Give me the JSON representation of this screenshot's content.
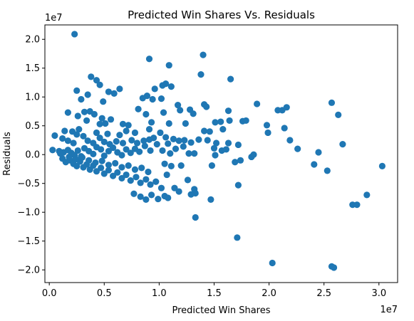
{
  "chart_data": {
    "type": "scatter",
    "title": "Predicted Win Shares Vs. Residuals",
    "xlabel": "Predicted Win Shares",
    "ylabel": "Residuals",
    "x_offset_label": "1e7",
    "y_offset_label": "1e7",
    "xlim": [
      -400000,
      31700000
    ],
    "ylim": [
      -22200000,
      22500000
    ],
    "x_ticks": [
      0,
      5000000,
      10000000,
      15000000,
      20000000,
      25000000,
      30000000
    ],
    "x_tick_labels": [
      "0.0",
      "0.5",
      "1.0",
      "1.5",
      "2.0",
      "2.5",
      "3.0"
    ],
    "y_ticks": [
      -20000000,
      -15000000,
      -10000000,
      -5000000,
      0,
      5000000,
      10000000,
      15000000,
      20000000
    ],
    "y_tick_labels": [
      "−2.0",
      "−1.5",
      "−1.0",
      "−0.5",
      "0.0",
      "0.5",
      "1.0",
      "1.5",
      "2.0"
    ],
    "grid": false,
    "marker_color": "#1f77b4",
    "points": [
      [
        2300000,
        20900000
      ],
      [
        3800000,
        13500000
      ],
      [
        4300000,
        12900000
      ],
      [
        2500000,
        11100000
      ],
      [
        3500000,
        10400000
      ],
      [
        4600000,
        12100000
      ],
      [
        5400000,
        10900000
      ],
      [
        5900000,
        10600000
      ],
      [
        6400000,
        11400000
      ],
      [
        4900000,
        9200000
      ],
      [
        2900000,
        9600000
      ],
      [
        3200000,
        7400000
      ],
      [
        3700000,
        7500000
      ],
      [
        1700000,
        7300000
      ],
      [
        4100000,
        7000000
      ],
      [
        2600000,
        6700000
      ],
      [
        3400000,
        5900000
      ],
      [
        5100000,
        5400000
      ],
      [
        4600000,
        5300000
      ],
      [
        4800000,
        6300000
      ],
      [
        5600000,
        6100000
      ],
      [
        6700000,
        5300000
      ],
      [
        7200000,
        5100000
      ],
      [
        1400000,
        4100000
      ],
      [
        2100000,
        4000000
      ],
      [
        2700000,
        4400000
      ],
      [
        3100000,
        3200000
      ],
      [
        4300000,
        3800000
      ],
      [
        5300000,
        3600000
      ],
      [
        6400000,
        3400000
      ],
      [
        7000000,
        4100000
      ],
      [
        7800000,
        3800000
      ],
      [
        500000,
        3300000
      ],
      [
        1200000,
        2800000
      ],
      [
        1700000,
        2400000
      ],
      [
        2200000,
        2000000
      ],
      [
        2500000,
        3500000
      ],
      [
        3500000,
        2400000
      ],
      [
        4000000,
        2000000
      ],
      [
        4600000,
        2900000
      ],
      [
        5000000,
        2200000
      ],
      [
        5500000,
        1800000
      ],
      [
        6100000,
        2300000
      ],
      [
        6700000,
        2000000
      ],
      [
        7500000,
        2500000
      ],
      [
        8000000,
        2000000
      ],
      [
        8600000,
        2400000
      ],
      [
        9100000,
        2600000
      ],
      [
        9500000,
        2900000
      ],
      [
        300000,
        800000
      ],
      [
        900000,
        600000
      ],
      [
        1300000,
        400000
      ],
      [
        1700000,
        800000
      ],
      [
        2000000,
        300000
      ],
      [
        2300000,
        -100000
      ],
      [
        2600000,
        700000
      ],
      [
        2900000,
        -300000
      ],
      [
        3200000,
        1100000
      ],
      [
        3600000,
        600000
      ],
      [
        4000000,
        100000
      ],
      [
        4300000,
        1300000
      ],
      [
        4700000,
        900000
      ],
      [
        5000000,
        -200000
      ],
      [
        5400000,
        600000
      ],
      [
        5800000,
        1200000
      ],
      [
        6200000,
        400000
      ],
      [
        6600000,
        -100000
      ],
      [
        7000000,
        900000
      ],
      [
        7400000,
        300000
      ],
      [
        7800000,
        1000000
      ],
      [
        8200000,
        500000
      ],
      [
        8700000,
        1500000
      ],
      [
        9200000,
        700000
      ],
      [
        9800000,
        1800000
      ],
      [
        1200000,
        -700000
      ],
      [
        1500000,
        -1300000
      ],
      [
        1900000,
        -1000000
      ],
      [
        2200000,
        -1600000
      ],
      [
        2500000,
        -2000000
      ],
      [
        2800000,
        -1200000
      ],
      [
        3100000,
        -2200000
      ],
      [
        3400000,
        -1700000
      ],
      [
        3700000,
        -2600000
      ],
      [
        4000000,
        -1900000
      ],
      [
        4300000,
        -2900000
      ],
      [
        4700000,
        -2300000
      ],
      [
        5000000,
        -3300000
      ],
      [
        5400000,
        -2700000
      ],
      [
        5800000,
        -3700000
      ],
      [
        6200000,
        -3100000
      ],
      [
        6600000,
        -4100000
      ],
      [
        7000000,
        -3500000
      ],
      [
        7400000,
        -4500000
      ],
      [
        7900000,
        -3900000
      ],
      [
        8300000,
        -4900000
      ],
      [
        8800000,
        -4300000
      ],
      [
        9200000,
        -5200000
      ],
      [
        9700000,
        -4700000
      ],
      [
        10200000,
        -5800000
      ],
      [
        1000000,
        200000
      ],
      [
        1800000,
        -400000
      ],
      [
        2400000,
        -800000
      ],
      [
        3000000,
        -500000
      ],
      [
        3600000,
        -1000000
      ],
      [
        4200000,
        -1400000
      ],
      [
        4800000,
        -1100000
      ],
      [
        5400000,
        -1800000
      ],
      [
        6000000,
        -1500000
      ],
      [
        6600000,
        -2200000
      ],
      [
        7200000,
        -1900000
      ],
      [
        7800000,
        -2600000
      ],
      [
        8400000,
        -2300000
      ],
      [
        9000000,
        -3000000
      ],
      [
        7700000,
        -6800000
      ],
      [
        8300000,
        -7300000
      ],
      [
        8800000,
        -7800000
      ],
      [
        9300000,
        -7000000
      ],
      [
        9900000,
        -7700000
      ],
      [
        10500000,
        -7200000
      ],
      [
        10800000,
        -7500000
      ],
      [
        9100000,
        16600000
      ],
      [
        10900000,
        15500000
      ],
      [
        10600000,
        12300000
      ],
      [
        10300000,
        12000000
      ],
      [
        11100000,
        11800000
      ],
      [
        9600000,
        11400000
      ],
      [
        10200000,
        9700000
      ],
      [
        9400000,
        9600000
      ],
      [
        8500000,
        9800000
      ],
      [
        8900000,
        10200000
      ],
      [
        8100000,
        7900000
      ],
      [
        8800000,
        7000000
      ],
      [
        10400000,
        7300000
      ],
      [
        9300000,
        5600000
      ],
      [
        10900000,
        5400000
      ],
      [
        9100000,
        4400000
      ],
      [
        10100000,
        3800000
      ],
      [
        10600000,
        3000000
      ],
      [
        11300000,
        2700000
      ],
      [
        11800000,
        2400000
      ],
      [
        12300000,
        2500000
      ],
      [
        12900000,
        2100000
      ],
      [
        13600000,
        2600000
      ],
      [
        10800000,
        1900000
      ],
      [
        10300000,
        700000
      ],
      [
        11000000,
        200000
      ],
      [
        11500000,
        1000000
      ],
      [
        12200000,
        1400000
      ],
      [
        12700000,
        200000
      ],
      [
        13200000,
        200000
      ],
      [
        10500000,
        -1600000
      ],
      [
        11100000,
        -2000000
      ],
      [
        12000000,
        -1900000
      ],
      [
        10700000,
        -3500000
      ],
      [
        11400000,
        -5800000
      ],
      [
        11800000,
        -6400000
      ],
      [
        12600000,
        -4400000
      ],
      [
        13200000,
        -6000000
      ],
      [
        13300000,
        -6700000
      ],
      [
        12900000,
        -6900000
      ],
      [
        11700000,
        8600000
      ],
      [
        11900000,
        7700000
      ],
      [
        12400000,
        5400000
      ],
      [
        12800000,
        7800000
      ],
      [
        13100000,
        7100000
      ],
      [
        13800000,
        13900000
      ],
      [
        14000000,
        17300000
      ],
      [
        14100000,
        8700000
      ],
      [
        14300000,
        8300000
      ],
      [
        14100000,
        4100000
      ],
      [
        14600000,
        4000000
      ],
      [
        14400000,
        2500000
      ],
      [
        15100000,
        5600000
      ],
      [
        15600000,
        5700000
      ],
      [
        15800000,
        4400000
      ],
      [
        16300000,
        7600000
      ],
      [
        16400000,
        5900000
      ],
      [
        16500000,
        13100000
      ],
      [
        15200000,
        2000000
      ],
      [
        15000000,
        1100000
      ],
      [
        15100000,
        -100000
      ],
      [
        15700000,
        700000
      ],
      [
        16100000,
        900000
      ],
      [
        16300000,
        2000000
      ],
      [
        16900000,
        -1300000
      ],
      [
        17200000,
        1700000
      ],
      [
        17400000,
        -1000000
      ],
      [
        17600000,
        5800000
      ],
      [
        17900000,
        5900000
      ],
      [
        14800000,
        -1900000
      ],
      [
        14700000,
        -7800000
      ],
      [
        13300000,
        -10900000
      ],
      [
        17200000,
        -5300000
      ],
      [
        17100000,
        -14400000
      ],
      [
        18400000,
        -400000
      ],
      [
        18600000,
        0
      ],
      [
        18900000,
        8800000
      ],
      [
        19800000,
        5100000
      ],
      [
        19900000,
        3800000
      ],
      [
        20300000,
        -18800000
      ],
      [
        20800000,
        7700000
      ],
      [
        21200000,
        7700000
      ],
      [
        21400000,
        4600000
      ],
      [
        21600000,
        8200000
      ],
      [
        21900000,
        2500000
      ],
      [
        22600000,
        1000000
      ],
      [
        24100000,
        -1700000
      ],
      [
        24500000,
        400000
      ],
      [
        25300000,
        -2800000
      ],
      [
        25700000,
        9000000
      ],
      [
        25700000,
        -19400000
      ],
      [
        25900000,
        -19600000
      ],
      [
        26300000,
        6900000
      ],
      [
        26700000,
        1800000
      ],
      [
        27600000,
        -8700000
      ],
      [
        28000000,
        -8700000
      ],
      [
        28900000,
        -7000000
      ],
      [
        30300000,
        -2000000
      ]
    ]
  }
}
